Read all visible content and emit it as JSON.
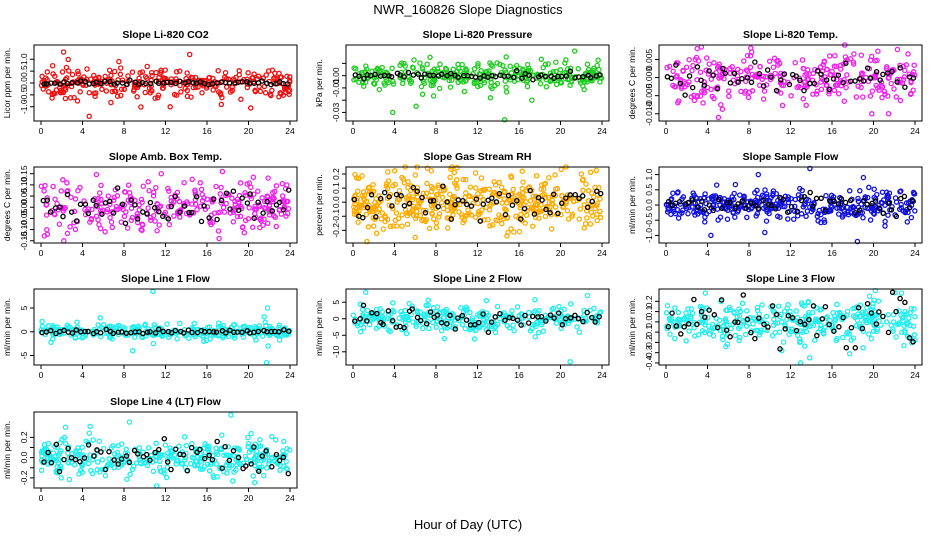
{
  "page": {
    "title": "NWR_160826  Slope Diagnostics",
    "x_axis_label": "Hour of Day (UTC)"
  },
  "chart_data": [
    {
      "type": "scatter",
      "title": "Slope Li-820 CO2",
      "ylabel": "Licor ppm per min.",
      "xlim": [
        0,
        24
      ],
      "ylim": [
        -1.6,
        1.6
      ],
      "xticks": [
        0,
        4,
        8,
        12,
        16,
        20,
        24
      ],
      "yticks": [
        -1.0,
        -0.5,
        0.0,
        0.5,
        1.0
      ],
      "ytick_labels": [
        "-1.0",
        "-0.5",
        "0.0",
        "0.5",
        "1.0"
      ],
      "color": "#ee1111",
      "spread": 0.3,
      "mean_spread": 0.04,
      "n_points": 300,
      "n_mean": 60,
      "outlier_values": [
        1.3,
        -1.4,
        1.2,
        -1.0,
        0.9,
        -0.9
      ]
    },
    {
      "type": "scatter",
      "title": "Slope Li-820 Pressure",
      "ylabel": "kPa per min.",
      "xlim": [
        0,
        24
      ],
      "ylim": [
        -0.037,
        0.025
      ],
      "xticks": [
        0,
        4,
        8,
        12,
        16,
        20,
        24
      ],
      "yticks": [
        -0.03,
        -0.02,
        -0.01,
        0.0,
        0.01
      ],
      "ytick_labels": [
        "-0.03",
        "",
        "-0.01",
        "0.00",
        ""
      ],
      "color": "#22cc22",
      "spread": 0.006,
      "mean_spread": 0.0015,
      "n_points": 300,
      "n_mean": 60,
      "outlier_values": [
        -0.036,
        -0.03,
        -0.025,
        0.02,
        -0.02,
        0.015
      ]
    },
    {
      "type": "scatter",
      "title": "Slope Li-820 Temp.",
      "ylabel": "degrees C per min.",
      "xlim": [
        0,
        24
      ],
      "ylim": [
        -0.012,
        0.009
      ],
      "xticks": [
        0,
        4,
        8,
        12,
        16,
        20,
        24
      ],
      "yticks": [
        -0.01,
        -0.005,
        0.0,
        0.005
      ],
      "ytick_labels": [
        "-0.010",
        "-0.005",
        "0.000",
        "0.005"
      ],
      "color": "#ee22ee",
      "spread": 0.0035,
      "mean_spread": 0.002,
      "n_points": 300,
      "n_mean": 60,
      "outlier_values": [
        -0.011,
        0.008,
        -0.01,
        0.007
      ]
    },
    {
      "type": "scatter",
      "title": "Slope Amb. Box Temp.",
      "ylabel": "degrees C per min.",
      "xlim": [
        0,
        24
      ],
      "ylim": [
        -0.16,
        0.18
      ],
      "xticks": [
        0,
        4,
        8,
        12,
        16,
        20,
        24
      ],
      "yticks": [
        -0.15,
        -0.1,
        -0.05,
        0.0,
        0.05,
        0.1,
        0.15
      ],
      "ytick_labels": [
        "-0.15",
        "-0.10",
        "-0.05",
        "0.00",
        "0.05",
        "0.10",
        "0.15"
      ],
      "color": "#ee22ee",
      "spread": 0.055,
      "mean_spread": 0.04,
      "n_points": 300,
      "n_mean": 60,
      "outlier_values": [
        0.16,
        -0.15,
        0.15,
        -0.14
      ]
    },
    {
      "type": "scatter",
      "title": "Slope Gas Stream RH",
      "ylabel": "percent per min.",
      "xlim": [
        0,
        24
      ],
      "ylim": [
        -0.29,
        0.25
      ],
      "xticks": [
        0,
        4,
        8,
        12,
        16,
        20,
        24
      ],
      "yticks": [
        -0.2,
        -0.1,
        0.0,
        0.1,
        0.2
      ],
      "ytick_labels": [
        "-0.2",
        "-0.1",
        "0.0",
        "0.1",
        "0.2"
      ],
      "color": "#ffaa00",
      "spread": 0.1,
      "mean_spread": 0.06,
      "n_points": 450,
      "n_mean": 60,
      "outlier_values": [
        0.22,
        -0.25,
        -0.28,
        0.2
      ]
    },
    {
      "type": "scatter",
      "title": "Slope Sample Flow",
      "ylabel": "ml/min per min.",
      "xlim": [
        0,
        24
      ],
      "ylim": [
        -1.25,
        1.25
      ],
      "xticks": [
        0,
        4,
        8,
        12,
        16,
        20,
        24
      ],
      "yticks": [
        -1.0,
        -0.5,
        0.0,
        0.5,
        1.0
      ],
      "ytick_labels": [
        "-1.0",
        "-0.5",
        "0.0",
        "0.5",
        "1.0"
      ],
      "color": "#1111dd",
      "spread": 0.25,
      "mean_spread": 0.15,
      "n_points": 350,
      "n_mean": 60,
      "outlier_values": [
        1.2,
        -1.2,
        1.0,
        -1.0,
        0.9
      ]
    },
    {
      "type": "scatter",
      "title": "Slope Line 1 Flow",
      "ylabel": "ml/min per min.",
      "xlim": [
        0,
        24
      ],
      "ylim": [
        -7.0,
        9.0
      ],
      "xticks": [
        0,
        4,
        8,
        12,
        16,
        20,
        24
      ],
      "yticks": [
        -5,
        0,
        5
      ],
      "ytick_labels": [
        "-5",
        "0",
        "5"
      ],
      "color": "#22eeee",
      "spread": 0.8,
      "mean_spread": 0.25,
      "n_points": 300,
      "n_mean": 60,
      "outlier_values": [
        8.5,
        -6.5,
        -4.0,
        -3.0,
        5.0
      ]
    },
    {
      "type": "scatter",
      "title": "Slope Line 2 Flow",
      "ylabel": "ml/min per min.",
      "xlim": [
        0,
        24
      ],
      "ylim": [
        -14.0,
        9.0
      ],
      "xticks": [
        0,
        4,
        8,
        12,
        16,
        20,
        24
      ],
      "yticks": [
        -10,
        -5,
        0,
        5
      ],
      "ytick_labels": [
        "-10",
        "-5",
        "0",
        "5"
      ],
      "color": "#22eeee",
      "spread": 2.0,
      "mean_spread": 1.5,
      "n_points": 300,
      "n_mean": 60,
      "outlier_values": [
        8.0,
        -13.0,
        7.0,
        -6.0
      ]
    },
    {
      "type": "scatter",
      "title": "Slope Line 3 Flow",
      "ylabel": "ml/min per min.",
      "xlim": [
        0,
        24
      ],
      "ylim": [
        -0.42,
        0.32
      ],
      "xticks": [
        0,
        4,
        8,
        12,
        16,
        20,
        24
      ],
      "yticks": [
        -0.4,
        -0.3,
        -0.2,
        -0.1,
        0.0,
        0.1,
        0.2
      ],
      "ytick_labels": [
        "-0.4",
        "-0.3",
        "-0.2",
        "-0.1",
        "0.0",
        "0.1",
        "0.2"
      ],
      "color": "#22eeee",
      "spread": 0.1,
      "mean_spread": 0.1,
      "n_points": 350,
      "n_mean": 60,
      "outlier_values": [
        0.28,
        -0.4,
        0.25,
        -0.35
      ]
    },
    {
      "type": "scatter",
      "title": "Slope Line 4 (LT) Flow",
      "ylabel": "ml/min per min.",
      "xlim": [
        0,
        24
      ],
      "ylim": [
        -0.3,
        0.45
      ],
      "xticks": [
        0,
        4,
        8,
        12,
        16,
        20,
        24
      ],
      "yticks": [
        -0.2,
        -0.1,
        0.0,
        0.1,
        0.2
      ],
      "ytick_labels": [
        "-0.2",
        "",
        "0.0",
        "",
        "0.2"
      ],
      "color": "#22eeee",
      "spread": 0.09,
      "mean_spread": 0.08,
      "n_points": 350,
      "n_mean": 60,
      "outlier_values": [
        0.42,
        -0.28,
        0.35,
        0.3
      ]
    }
  ]
}
